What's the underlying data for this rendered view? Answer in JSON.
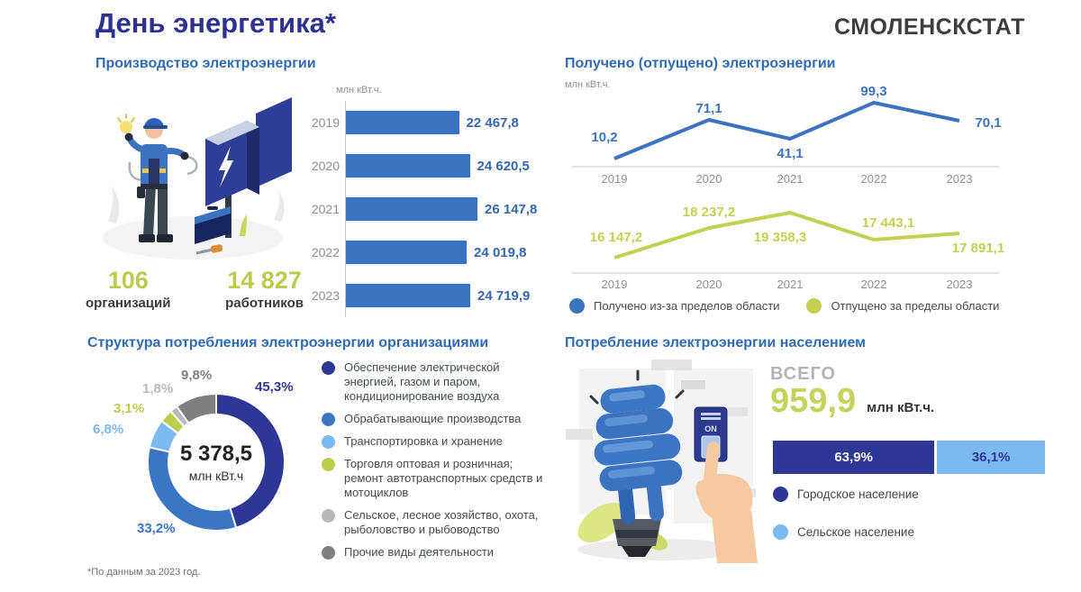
{
  "header": {
    "title": "День энергетика*",
    "logo": "СМОЛЕНСКСТАТ"
  },
  "footnote": "*По данным за 2023 год.",
  "sections": {
    "production": {
      "title": "Производство электроэнергии",
      "unit": "млн кВт.ч.",
      "org_value": "106",
      "org_label": "организаций",
      "emp_value": "14 827",
      "emp_label": "работников"
    },
    "flows": {
      "title": "Получено (отпущено) электроэнергии",
      "unit": "млн кВт.ч."
    },
    "structure": {
      "title": "Структура потребления электроэнергии организациями",
      "center_value": "5 378,5",
      "center_unit": "млн кВт.ч"
    },
    "population": {
      "title": "Потребление электроэнергии населением",
      "total_label": "ВСЕГО",
      "total_value": "959,9",
      "total_unit": "млн кВт.ч.",
      "switch_label": "ON"
    }
  },
  "chart_data": [
    {
      "id": "production",
      "type": "bar",
      "orientation": "horizontal",
      "title": "Производство электроэнергии",
      "ylabel": "млн кВт.ч.",
      "categories": [
        "2019",
        "2020",
        "2021",
        "2022",
        "2023"
      ],
      "values": [
        22467.8,
        24620.5,
        26147.8,
        24019.8,
        24719.9
      ],
      "value_labels": [
        "22 467,8",
        "24 620,5",
        "26 147,8",
        "24 019,8",
        "24 719,9"
      ],
      "bar_color": "#3b73c1"
    },
    {
      "id": "flows",
      "type": "line",
      "title": "Получено (отпущено) электроэнергии",
      "ylabel": "млн кВт.ч.",
      "x": [
        "2019",
        "2020",
        "2021",
        "2022",
        "2023"
      ],
      "legend_position": "bottom",
      "series": [
        {
          "name": "Получено из-за пределов области",
          "color": "#3b73c1",
          "values": [
            10.2,
            71.1,
            41.1,
            99.3,
            70.1
          ],
          "value_labels": [
            "10,2",
            "71,1",
            "41,1",
            "99,3",
            "70,1"
          ]
        },
        {
          "name": "Отпущено за пределы области",
          "color": "#c3d052",
          "values": [
            16147.2,
            18237.2,
            19358.3,
            17443.1,
            17891.1
          ],
          "value_labels": [
            "16 147,2",
            "18 237,2",
            "19 358,3",
            "17 443,1",
            "17 891,1"
          ]
        }
      ]
    },
    {
      "id": "structure",
      "type": "pie",
      "donut": true,
      "title": "Структура потребления электроэнергии организациями",
      "center_value": "5 378,5",
      "center_unit": "млн кВт.ч",
      "segments": [
        {
          "pct": 45.3,
          "pct_label": "45,3%",
          "color": "#2e3795",
          "name": "Обеспечение электрической энергией, газом и паром, кондиционирование воздуха"
        },
        {
          "pct": 33.2,
          "pct_label": "33,2%",
          "color": "#3a76c2",
          "name": "Обрабатывающие производства"
        },
        {
          "pct": 6.8,
          "pct_label": "6,8%",
          "color": "#7cb9f0",
          "name": "Транспортировка и хранение"
        },
        {
          "pct": 3.1,
          "pct_label": "3,1%",
          "color": "#bdce4f",
          "name": "Торговля оптовая и розничная; ремонт автотранспортных средств и мотоциклов"
        },
        {
          "pct": 1.8,
          "pct_label": "1,8%",
          "color": "#b9b9b9",
          "name": "Сельское, лесное хозяйство, охота, рыболовство и рыбоводство"
        },
        {
          "pct": 9.8,
          "pct_label": "9,8%",
          "color": "#7f7f7f",
          "name": "Прочие виды деятельности"
        }
      ]
    },
    {
      "id": "population",
      "type": "bar",
      "stacked": true,
      "title": "Потребление электроэнергии населением",
      "total_value": 959.9,
      "unit": "млн кВт.ч.",
      "segments": [
        {
          "pct": 63.9,
          "pct_label": "63,9%",
          "color": "#2e3795",
          "name": "Городское население"
        },
        {
          "pct": 36.1,
          "pct_label": "36,1%",
          "color": "#7cb9f0",
          "name": "Сельское население"
        }
      ]
    }
  ]
}
